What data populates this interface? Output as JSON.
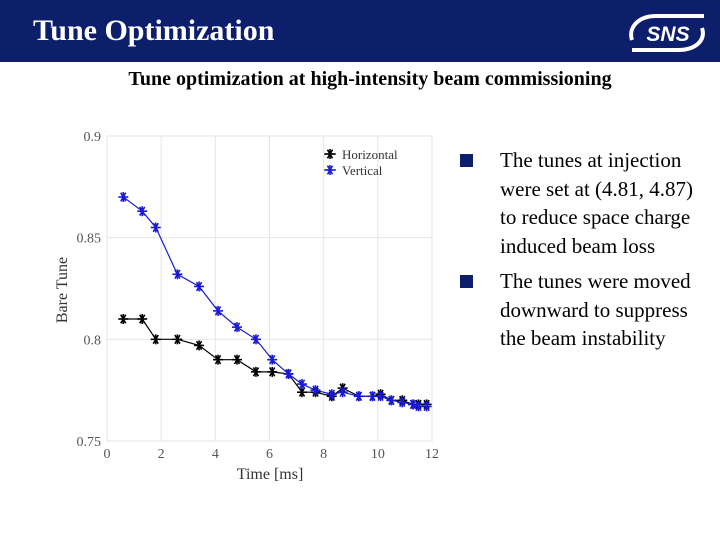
{
  "header": {
    "title": "Tune Optimization",
    "logo_text": "SNS",
    "background_color": "#0d1f6b"
  },
  "subtitle": "Tune optimization at high-intensity beam commissioning",
  "bullets": [
    "The tunes at injection were set at (4.81, 4.87) to reduce space charge induced beam loss",
    "The tunes were moved downward to suppress the beam instability"
  ],
  "chart_data": {
    "type": "line",
    "title": "",
    "xlabel": "Time [ms]",
    "ylabel": "Bare Tune",
    "xlim": [
      0,
      12
    ],
    "ylim": [
      0.75,
      0.9
    ],
    "x_ticks": [
      "0",
      "2",
      "4",
      "6",
      "8",
      "10",
      "12"
    ],
    "y_ticks": [
      "0.75",
      "0.8",
      "0.85",
      "0.9"
    ],
    "legend_position": "top-right",
    "series": [
      {
        "name": "Horizontal",
        "color": "#000000",
        "marker": "asterisk",
        "x": [
          0.6,
          1.3,
          1.8,
          2.6,
          3.4,
          4.1,
          4.8,
          5.5,
          6.1,
          6.7,
          7.2,
          7.7,
          8.3,
          8.7,
          9.3,
          9.8,
          10.1,
          10.5,
          10.9,
          11.3,
          11.5,
          11.8
        ],
        "values": [
          0.81,
          0.81,
          0.8,
          0.8,
          0.797,
          0.79,
          0.79,
          0.784,
          0.784,
          0.783,
          0.774,
          0.774,
          0.772,
          0.776,
          0.772,
          0.772,
          0.773,
          0.77,
          0.77,
          0.768,
          0.768,
          0.768
        ]
      },
      {
        "name": "Vertical",
        "color": "#1a1ad4",
        "marker": "asterisk",
        "x": [
          0.6,
          1.3,
          1.8,
          2.6,
          3.4,
          4.1,
          4.8,
          5.5,
          6.1,
          6.7,
          7.2,
          7.7,
          8.3,
          8.7,
          9.3,
          9.8,
          10.1,
          10.5,
          10.9,
          11.3,
          11.5,
          11.8
        ],
        "values": [
          0.87,
          0.863,
          0.855,
          0.832,
          0.826,
          0.814,
          0.806,
          0.8,
          0.79,
          0.783,
          0.778,
          0.775,
          0.773,
          0.774,
          0.772,
          0.772,
          0.772,
          0.77,
          0.769,
          0.768,
          0.767,
          0.767
        ]
      }
    ]
  }
}
